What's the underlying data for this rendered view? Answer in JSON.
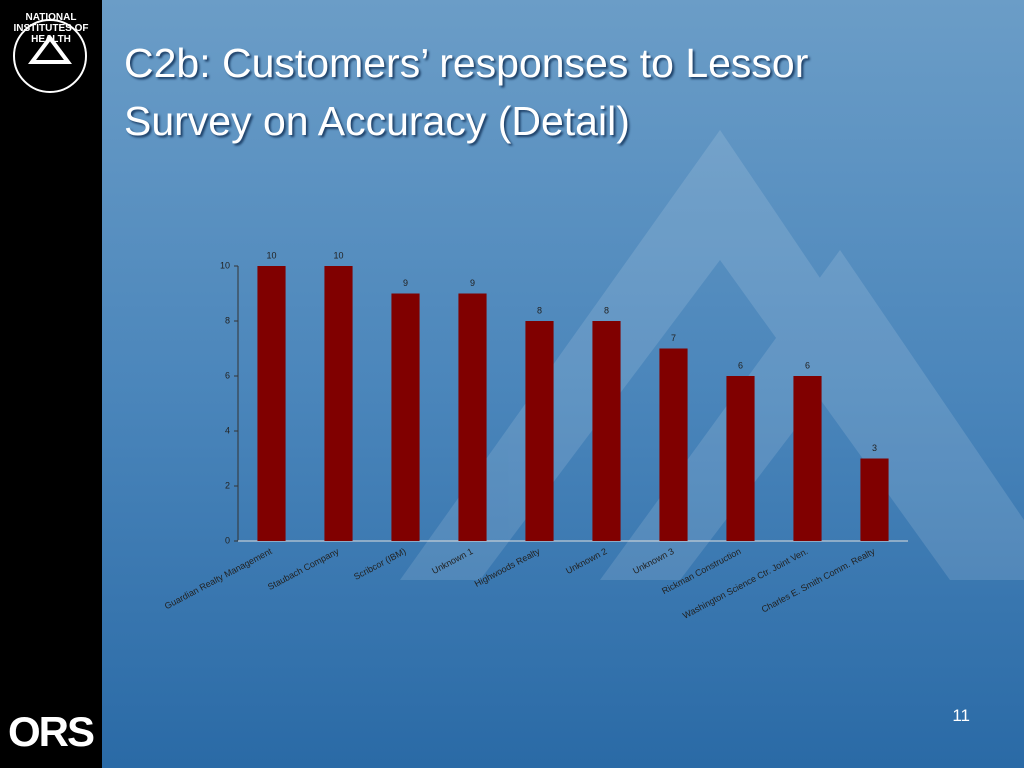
{
  "slide": {
    "logo_text": "NATIONAL INSTITUTES OF HEALTH",
    "footer_logo": "ORS",
    "page_number": "11"
  },
  "chart_data": {
    "type": "bar",
    "title": "C2b: Customers’ responses to Lessor Survey on Accuracy (Detail)",
    "categories": [
      "Guardian Realty Management",
      "Staubach Company",
      "Scribcor (IBM)",
      "Unknown 1",
      "Highwoods Realty",
      "Unknown 2",
      "Unknown 3",
      "Rickman Construction",
      "Washington Science Ctr. Joint Ven.",
      "Charles E. Smith Comm. Realty"
    ],
    "values": [
      10,
      10,
      9,
      9,
      8,
      8,
      7,
      6,
      6,
      3
    ],
    "color": "#800000",
    "ylim": [
      0,
      10
    ],
    "yticks": [
      0,
      2,
      4,
      6,
      8,
      10
    ],
    "grid": false
  }
}
